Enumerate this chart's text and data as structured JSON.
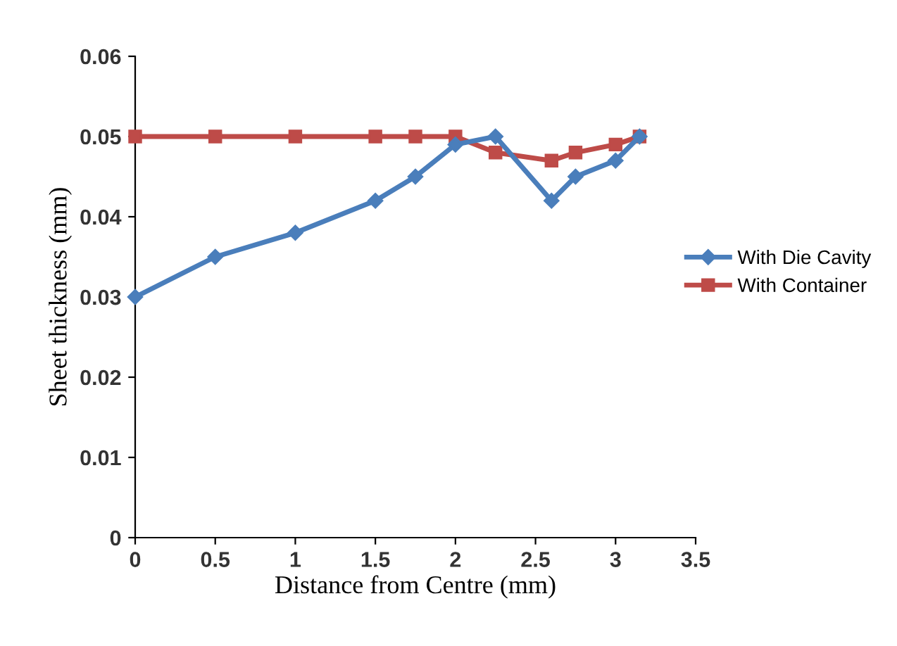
{
  "chart_data": {
    "type": "line",
    "xlabel": "Distance from Centre (mm)",
    "ylabel": "Sheet thickness (mm)",
    "xlim": [
      0,
      3.5
    ],
    "xticks": [
      0,
      0.5,
      1,
      1.5,
      2,
      2.5,
      3,
      3.5
    ],
    "ylim": [
      0,
      0.06
    ],
    "yticks": [
      0,
      0.01,
      0.02,
      0.03,
      0.04,
      0.05,
      0.06
    ],
    "grid": false,
    "legend": "right",
    "series": [
      {
        "name": "With Die Cavity",
        "color": "#4a7ebb",
        "marker": "diamond",
        "x": [
          0,
          0.5,
          1,
          1.5,
          1.75,
          2,
          2.25,
          2.6,
          2.75,
          3,
          3.15
        ],
        "values": [
          0.03,
          0.035,
          0.038,
          0.042,
          0.045,
          0.049,
          0.05,
          0.042,
          0.045,
          0.047,
          0.05
        ]
      },
      {
        "name": "With Container",
        "color": "#be4b48",
        "marker": "square",
        "x": [
          0,
          0.5,
          1,
          1.5,
          1.75,
          2,
          2.25,
          2.6,
          2.75,
          3,
          3.15
        ],
        "values": [
          0.05,
          0.05,
          0.05,
          0.05,
          0.05,
          0.05,
          0.048,
          0.047,
          0.048,
          0.049,
          0.05
        ]
      }
    ]
  }
}
